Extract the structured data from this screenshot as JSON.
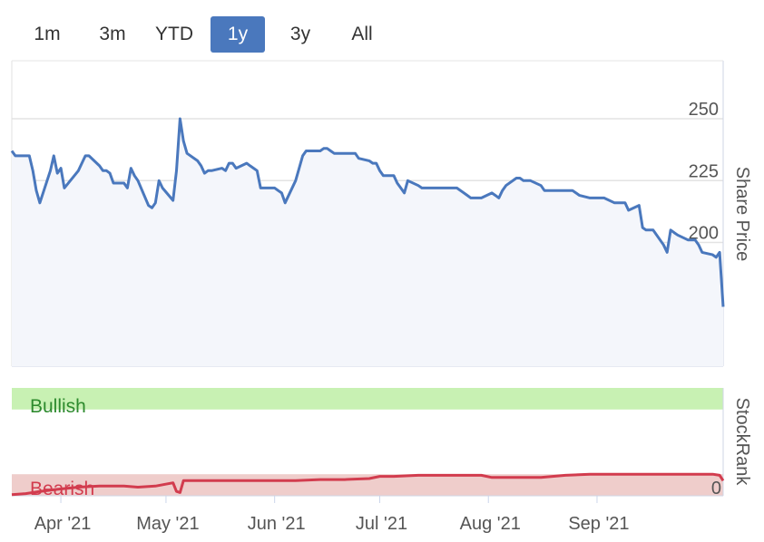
{
  "range_selector": {
    "buttons": [
      {
        "label": "1m",
        "active": false
      },
      {
        "label": "3m",
        "active": false
      },
      {
        "label": "YTD",
        "active": false
      },
      {
        "label": "1y",
        "active": true
      },
      {
        "label": "3y",
        "active": false
      },
      {
        "label": "All",
        "active": false
      }
    ]
  },
  "colors": {
    "price_line": "#4a78bd",
    "price_fill": "#f4f6fb",
    "rank_line": "#d23c4e",
    "bullish_band": "#c8f1b3",
    "bearish_band": "#efcdcb",
    "bullish_text": "#2e8b2e",
    "bearish_text": "#d23c4e",
    "active_button": "#4a78bd"
  },
  "chart_data": [
    {
      "type": "area",
      "ylabel": "Share Price",
      "ylim": [
        150,
        260
      ],
      "yticks": [
        150,
        175,
        200,
        225,
        250
      ],
      "grid": true,
      "axis_side": "right",
      "x_range": [
        "2021-03-18",
        "2021-09-28"
      ],
      "xticks": [
        {
          "label": "Apr '21",
          "date": "2021-04-01"
        },
        {
          "label": "May '21",
          "date": "2021-05-01"
        },
        {
          "label": "Jun '21",
          "date": "2021-06-01"
        },
        {
          "label": "Jul '21",
          "date": "2021-07-01"
        },
        {
          "label": "Aug '21",
          "date": "2021-08-01"
        },
        {
          "label": "Sep '21",
          "date": "2021-09-01"
        }
      ],
      "series": [
        {
          "points": [
            [
              "2021-03-18",
              237
            ],
            [
              "2021-03-19",
              235
            ],
            [
              "2021-03-22",
              235
            ],
            [
              "2021-03-23",
              235
            ],
            [
              "2021-03-24",
              229
            ],
            [
              "2021-03-25",
              221
            ],
            [
              "2021-03-26",
              216
            ],
            [
              "2021-03-29",
              229
            ],
            [
              "2021-03-30",
              235
            ],
            [
              "2021-03-31",
              228
            ],
            [
              "2021-04-01",
              230
            ],
            [
              "2021-04-02",
              222
            ],
            [
              "2021-04-06",
              229
            ],
            [
              "2021-04-07",
              232
            ],
            [
              "2021-04-08",
              235
            ],
            [
              "2021-04-09",
              235
            ],
            [
              "2021-04-12",
              231
            ],
            [
              "2021-04-13",
              229
            ],
            [
              "2021-04-14",
              229
            ],
            [
              "2021-04-15",
              228
            ],
            [
              "2021-04-16",
              224
            ],
            [
              "2021-04-19",
              224
            ],
            [
              "2021-04-20",
              222
            ],
            [
              "2021-04-21",
              230
            ],
            [
              "2021-04-22",
              227
            ],
            [
              "2021-04-23",
              225
            ],
            [
              "2021-04-26",
              215
            ],
            [
              "2021-04-27",
              214
            ],
            [
              "2021-04-28",
              216
            ],
            [
              "2021-04-29",
              225
            ],
            [
              "2021-04-30",
              222
            ],
            [
              "2021-05-03",
              217
            ],
            [
              "2021-05-04",
              229
            ],
            [
              "2021-05-05",
              250
            ],
            [
              "2021-05-06",
              241
            ],
            [
              "2021-05-07",
              236
            ],
            [
              "2021-05-10",
              233
            ],
            [
              "2021-05-11",
              231
            ],
            [
              "2021-05-12",
              228
            ],
            [
              "2021-05-13",
              229
            ],
            [
              "2021-05-14",
              229
            ],
            [
              "2021-05-17",
              230
            ],
            [
              "2021-05-18",
              229
            ],
            [
              "2021-05-19",
              232
            ],
            [
              "2021-05-20",
              232
            ],
            [
              "2021-05-21",
              230
            ],
            [
              "2021-05-24",
              232
            ],
            [
              "2021-05-25",
              231
            ],
            [
              "2021-05-26",
              230
            ],
            [
              "2021-05-27",
              229
            ],
            [
              "2021-05-28",
              222
            ],
            [
              "2021-06-01",
              222
            ],
            [
              "2021-06-02",
              221
            ],
            [
              "2021-06-03",
              220
            ],
            [
              "2021-06-04",
              216
            ],
            [
              "2021-06-07",
              225
            ],
            [
              "2021-06-08",
              230
            ],
            [
              "2021-06-09",
              235
            ],
            [
              "2021-06-10",
              237
            ],
            [
              "2021-06-11",
              237
            ],
            [
              "2021-06-14",
              237
            ],
            [
              "2021-06-15",
              238
            ],
            [
              "2021-06-16",
              238
            ],
            [
              "2021-06-17",
              237
            ],
            [
              "2021-06-18",
              236
            ],
            [
              "2021-06-21",
              236
            ],
            [
              "2021-06-22",
              236
            ],
            [
              "2021-06-23",
              236
            ],
            [
              "2021-06-24",
              236
            ],
            [
              "2021-06-25",
              234
            ],
            [
              "2021-06-28",
              233
            ],
            [
              "2021-06-29",
              232
            ],
            [
              "2021-06-30",
              232
            ],
            [
              "2021-07-01",
              229
            ],
            [
              "2021-07-02",
              227
            ],
            [
              "2021-07-05",
              227
            ],
            [
              "2021-07-06",
              224
            ],
            [
              "2021-07-07",
              222
            ],
            [
              "2021-07-08",
              220
            ],
            [
              "2021-07-09",
              225
            ],
            [
              "2021-07-12",
              223
            ],
            [
              "2021-07-13",
              222
            ],
            [
              "2021-07-14",
              222
            ],
            [
              "2021-07-15",
              222
            ],
            [
              "2021-07-16",
              222
            ],
            [
              "2021-07-19",
              222
            ],
            [
              "2021-07-20",
              222
            ],
            [
              "2021-07-21",
              222
            ],
            [
              "2021-07-22",
              222
            ],
            [
              "2021-07-23",
              222
            ],
            [
              "2021-07-26",
              219
            ],
            [
              "2021-07-27",
              218
            ],
            [
              "2021-07-28",
              218
            ],
            [
              "2021-07-29",
              218
            ],
            [
              "2021-07-30",
              218
            ],
            [
              "2021-08-02",
              220
            ],
            [
              "2021-08-03",
              219
            ],
            [
              "2021-08-04",
              218
            ],
            [
              "2021-08-05",
              221
            ],
            [
              "2021-08-06",
              223
            ],
            [
              "2021-08-09",
              226
            ],
            [
              "2021-08-10",
              226
            ],
            [
              "2021-08-11",
              225
            ],
            [
              "2021-08-12",
              225
            ],
            [
              "2021-08-13",
              225
            ],
            [
              "2021-08-16",
              223
            ],
            [
              "2021-08-17",
              221
            ],
            [
              "2021-08-18",
              221
            ],
            [
              "2021-08-19",
              221
            ],
            [
              "2021-08-20",
              221
            ],
            [
              "2021-08-23",
              221
            ],
            [
              "2021-08-24",
              221
            ],
            [
              "2021-08-25",
              221
            ],
            [
              "2021-08-26",
              220
            ],
            [
              "2021-08-27",
              219
            ],
            [
              "2021-08-30",
              218
            ],
            [
              "2021-08-31",
              218
            ],
            [
              "2021-09-01",
              218
            ],
            [
              "2021-09-02",
              218
            ],
            [
              "2021-09-03",
              218
            ],
            [
              "2021-09-06",
              216
            ],
            [
              "2021-09-07",
              216
            ],
            [
              "2021-09-08",
              216
            ],
            [
              "2021-09-09",
              216
            ],
            [
              "2021-09-10",
              213
            ],
            [
              "2021-09-13",
              215
            ],
            [
              "2021-09-14",
              206
            ],
            [
              "2021-09-15",
              205
            ],
            [
              "2021-09-16",
              205
            ],
            [
              "2021-09-17",
              205
            ],
            [
              "2021-09-20",
              199
            ],
            [
              "2021-09-21",
              196
            ],
            [
              "2021-09-22",
              205
            ],
            [
              "2021-09-23",
              204
            ],
            [
              "2021-09-24",
              203
            ],
            [
              "2021-09-27",
              201
            ],
            [
              "2021-09-28",
              201
            ],
            [
              "2021-09-29",
              201
            ],
            [
              "2021-09-30",
              199
            ],
            [
              "2021-10-01",
              196
            ],
            [
              "2021-10-04",
              195
            ],
            [
              "2021-10-05",
              194
            ],
            [
              "2021-10-06",
              196
            ],
            [
              "2021-10-07",
              174
            ]
          ]
        }
      ]
    },
    {
      "type": "line",
      "ylabel": "StockRank",
      "ylim": [
        0,
        100
      ],
      "yticks": [
        0
      ],
      "bands": [
        {
          "label": "Bullish",
          "from": 80,
          "to": 100
        },
        {
          "label": "Bearish",
          "from": 0,
          "to": 20
        }
      ],
      "series": [
        {
          "points": [
            [
              "2021-03-18",
              1
            ],
            [
              "2021-03-22",
              2
            ],
            [
              "2021-03-26",
              4
            ],
            [
              "2021-03-31",
              6
            ],
            [
              "2021-04-06",
              8
            ],
            [
              "2021-04-12",
              9
            ],
            [
              "2021-04-19",
              9
            ],
            [
              "2021-04-23",
              8
            ],
            [
              "2021-04-28",
              9
            ],
            [
              "2021-05-03",
              12
            ],
            [
              "2021-05-04",
              4
            ],
            [
              "2021-05-05",
              3
            ],
            [
              "2021-05-06",
              14
            ],
            [
              "2021-05-14",
              14
            ],
            [
              "2021-05-24",
              14
            ],
            [
              "2021-06-01",
              14
            ],
            [
              "2021-06-07",
              14
            ],
            [
              "2021-06-14",
              15
            ],
            [
              "2021-06-21",
              15
            ],
            [
              "2021-06-28",
              16
            ],
            [
              "2021-07-01",
              18
            ],
            [
              "2021-07-05",
              18
            ],
            [
              "2021-07-12",
              19
            ],
            [
              "2021-07-19",
              19
            ],
            [
              "2021-07-26",
              19
            ],
            [
              "2021-07-30",
              19
            ],
            [
              "2021-08-02",
              17
            ],
            [
              "2021-08-09",
              17
            ],
            [
              "2021-08-16",
              17
            ],
            [
              "2021-08-23",
              19
            ],
            [
              "2021-08-30",
              20
            ],
            [
              "2021-09-06",
              20
            ],
            [
              "2021-09-13",
              20
            ],
            [
              "2021-09-20",
              20
            ],
            [
              "2021-09-27",
              20
            ],
            [
              "2021-10-04",
              20
            ],
            [
              "2021-10-06",
              19
            ],
            [
              "2021-10-07",
              14
            ]
          ]
        }
      ]
    }
  ]
}
